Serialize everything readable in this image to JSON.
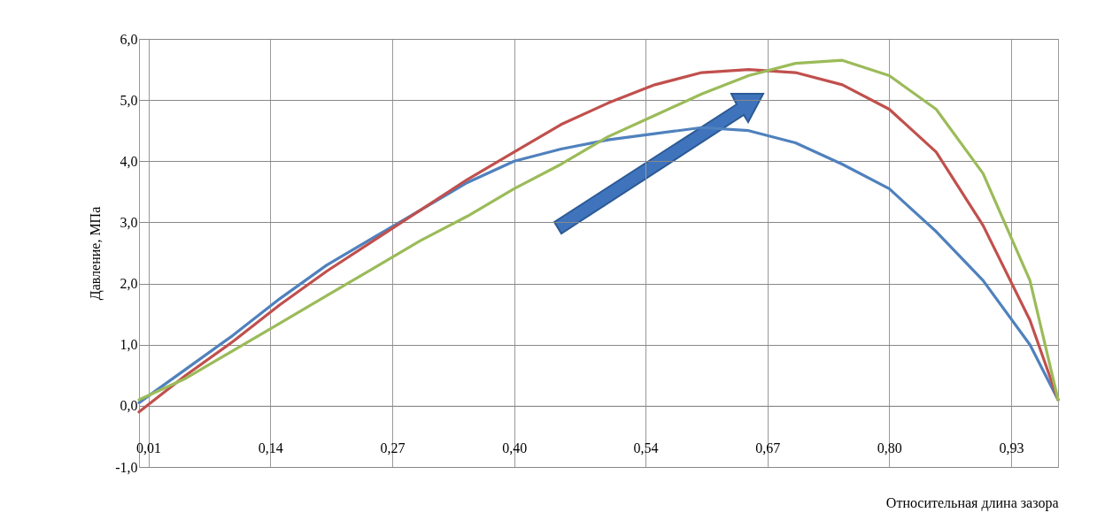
{
  "chart_data": {
    "type": "line",
    "xlabel": "Относительная длина зазора",
    "ylabel": "Давление, МПа",
    "x": [
      0,
      0.05,
      0.1,
      0.15,
      0.2,
      0.25,
      0.3,
      0.35,
      0.4,
      0.45,
      0.5,
      0.55,
      0.6,
      0.65,
      0.7,
      0.75,
      0.8,
      0.85,
      0.9,
      0.95,
      0.98
    ],
    "series": [
      {
        "color": "#4f81bd",
        "values": [
          0.05,
          0.6,
          1.15,
          1.75,
          2.3,
          2.75,
          3.2,
          3.65,
          4.0,
          4.2,
          4.35,
          4.45,
          4.55,
          4.5,
          4.3,
          3.95,
          3.55,
          2.85,
          2.05,
          1.0,
          0.1
        ]
      },
      {
        "color": "#c0504d",
        "values": [
          -0.1,
          0.5,
          1.05,
          1.65,
          2.2,
          2.7,
          3.2,
          3.7,
          4.15,
          4.6,
          4.95,
          5.25,
          5.45,
          5.5,
          5.45,
          5.25,
          4.85,
          4.15,
          2.95,
          1.4,
          0.1
        ]
      },
      {
        "color": "#9bbb59",
        "values": [
          0.1,
          0.45,
          0.9,
          1.35,
          1.8,
          2.25,
          2.7,
          3.1,
          3.55,
          3.95,
          4.4,
          4.75,
          5.1,
          5.4,
          5.6,
          5.65,
          5.4,
          4.85,
          3.8,
          2.05,
          0.1
        ]
      }
    ],
    "xlim": [
      0,
      0.98
    ],
    "xticks": [
      {
        "value": 0.01,
        "label": "0,01"
      },
      {
        "value": 0.14,
        "label": "0,14"
      },
      {
        "value": 0.27,
        "label": "0,27"
      },
      {
        "value": 0.4,
        "label": "0,40"
      },
      {
        "value": 0.54,
        "label": "0,54"
      },
      {
        "value": 0.67,
        "label": "0,67"
      },
      {
        "value": 0.8,
        "label": "0,80"
      },
      {
        "value": 0.93,
        "label": "0,93"
      }
    ],
    "ylim": [
      -1,
      6
    ],
    "yticks": [
      {
        "value": -1,
        "label": "-1,0"
      },
      {
        "value": 0,
        "label": "0,0"
      },
      {
        "value": 1,
        "label": "1,0"
      },
      {
        "value": 2,
        "label": "2,0"
      },
      {
        "value": 3,
        "label": "3,0"
      },
      {
        "value": 4,
        "label": "4,0"
      },
      {
        "value": 5,
        "label": "5,0"
      },
      {
        "value": 6,
        "label": "6,0"
      }
    ],
    "grid": true,
    "legend": false,
    "marker": "none",
    "line_style": "solid"
  }
}
